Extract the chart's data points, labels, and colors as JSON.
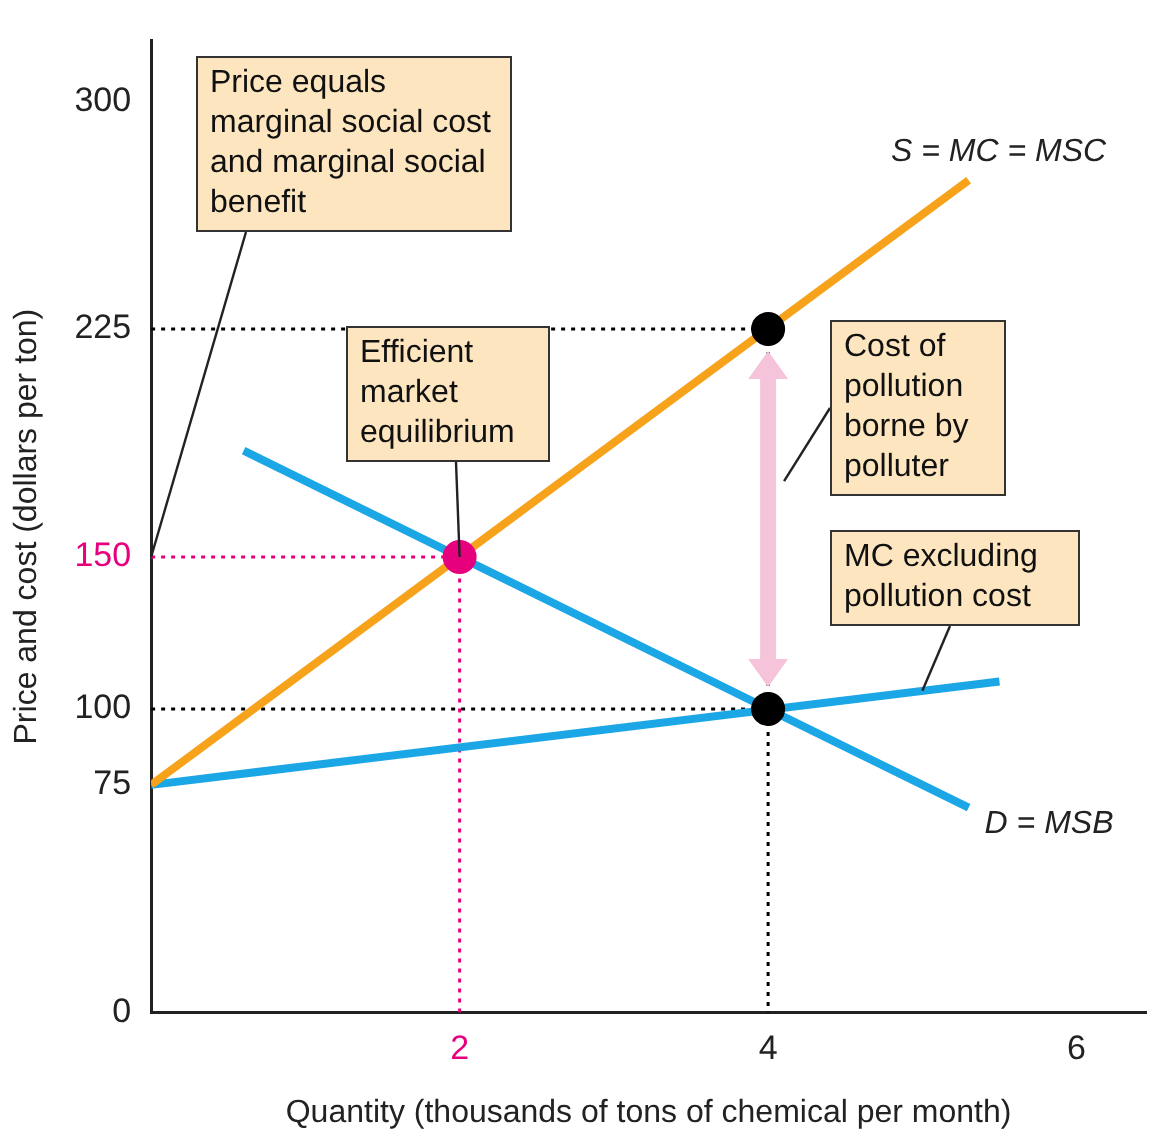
{
  "chart_data": {
    "type": "line",
    "xlabel": "Quantity (thousands of tons of chemical per month)",
    "ylabel": "Price and cost (dollars per ton)",
    "xlim": [
      0,
      6.45
    ],
    "xticks": [
      2,
      4,
      6
    ],
    "ylim": [
      0,
      320
    ],
    "yticks": [
      0,
      75,
      100,
      150,
      225,
      300
    ],
    "grid": false,
    "legend": false,
    "annotations": [
      {
        "text": "Price equals marginal social cost and marginal social benefit",
        "x": 0,
        "y": 150
      },
      {
        "text": "Efficient market equilibrium",
        "x": 2,
        "y": 150
      },
      {
        "text": "Cost of pollution borne by polluter",
        "x": 4,
        "y": 175
      },
      {
        "text": "MC excluding pollution cost",
        "x": 5,
        "y": 106
      }
    ],
    "series": [
      {
        "name": "S = MC = MSC",
        "color": "#f7a21b",
        "x": [
          0,
          5.3
        ],
        "values": [
          75,
          274
        ],
        "line_style": "solid",
        "marker": "none"
      },
      {
        "name": "D = MSB",
        "color": "#1ba6e6",
        "x": [
          0.6,
          5.3
        ],
        "values": [
          185,
          67.5
        ],
        "line_style": "solid",
        "marker": "none"
      },
      {
        "color": "#1ba6e6",
        "x": [
          0,
          5.5
        ],
        "values": [
          75,
          109
        ],
        "line_style": "solid",
        "marker": "none"
      },
      {
        "color": "#000000",
        "x": [
          0,
          4,
          4
        ],
        "values": [
          225,
          225,
          0
        ],
        "line_style": "dotted",
        "marker": "none"
      },
      {
        "color": "#000000",
        "x": [
          0,
          4
        ],
        "values": [
          100,
          100
        ],
        "line_style": "dotted",
        "marker": "none"
      },
      {
        "color": "#e6007e",
        "x": [
          0,
          2,
          2
        ],
        "values": [
          150,
          150,
          0
        ],
        "line_style": "dotted",
        "marker": "none"
      },
      {
        "type": "scatter",
        "color": "#000000",
        "x": [
          4,
          4
        ],
        "values": [
          225,
          100
        ],
        "marker": "circle"
      },
      {
        "type": "scatter",
        "color": "#e6007e",
        "x": [
          2
        ],
        "values": [
          150
        ],
        "marker": "circle"
      }
    ]
  }
}
